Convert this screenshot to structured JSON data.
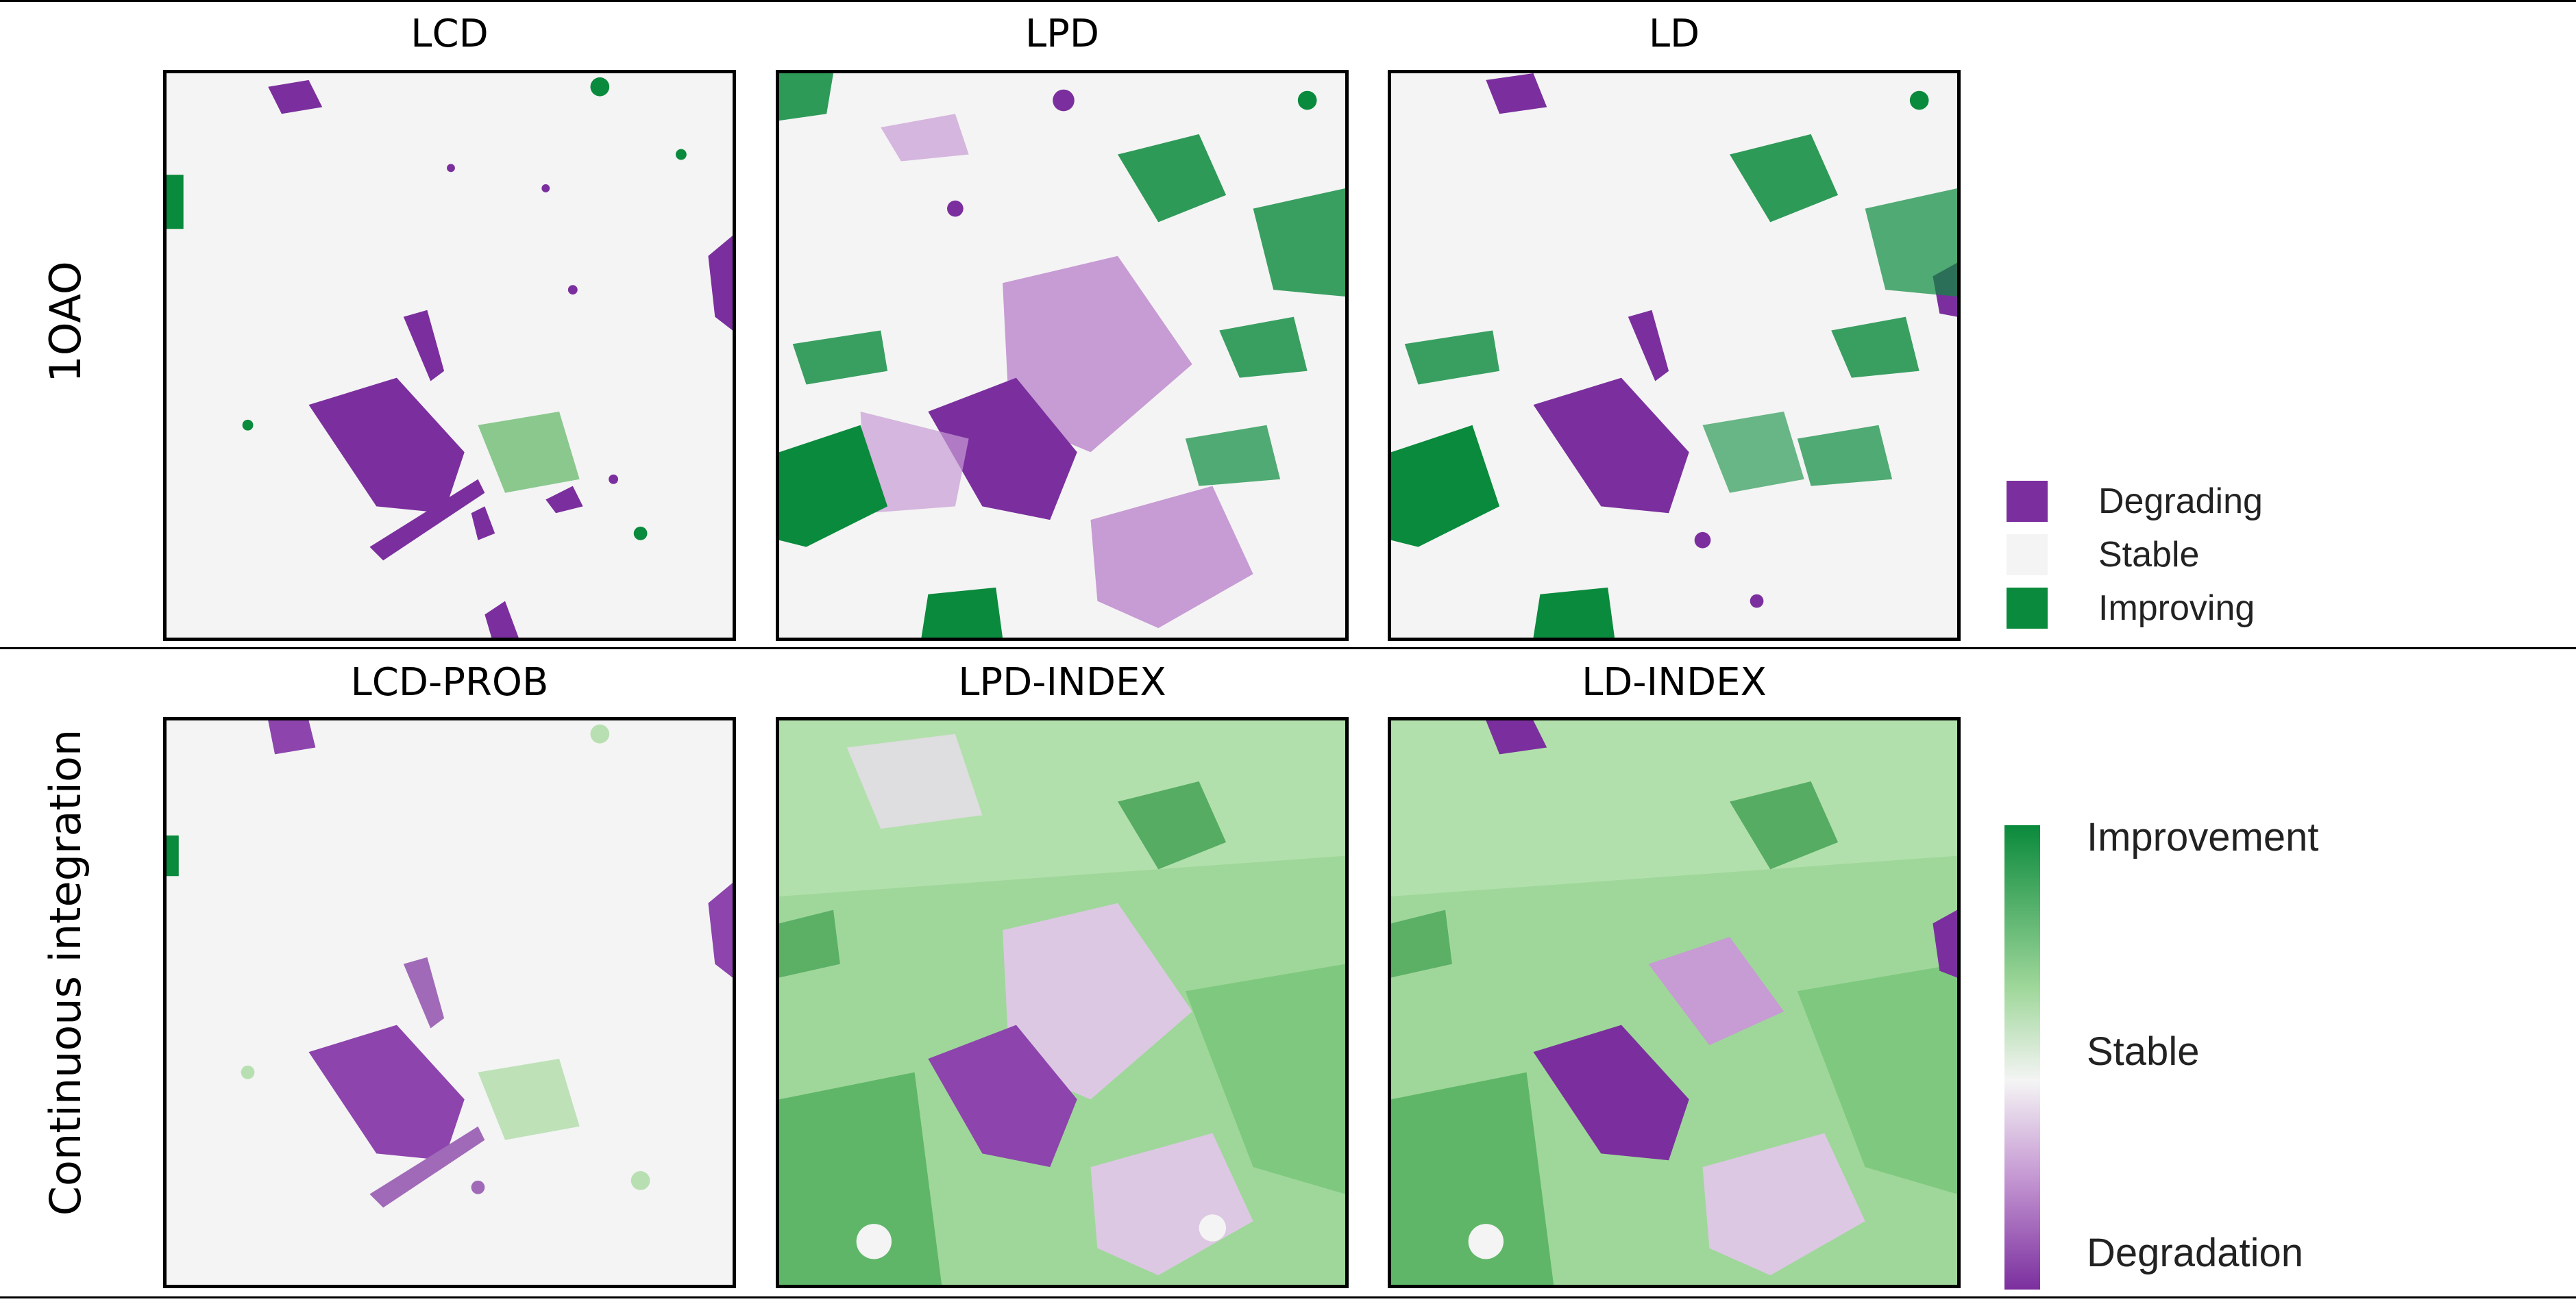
{
  "colors": {
    "degrading": "#7b2f9e",
    "stable": "#f4f4f4",
    "improving": "#0a8a3c",
    "degrading_light": "#c79bd4",
    "improving_light": "#9fd79a"
  },
  "rows": [
    {
      "label": "1OAO",
      "columns": [
        "LCD",
        "LPD",
        "LD"
      ]
    },
    {
      "label": "Continuous integration",
      "columns": [
        "LCD-PROB",
        "LPD-INDEX",
        "LD-INDEX"
      ]
    }
  ],
  "legend_discrete": [
    {
      "label": "Degrading",
      "color": "#7b2f9e"
    },
    {
      "label": "Stable",
      "color": "#f4f4f4"
    },
    {
      "label": "Improving",
      "color": "#0a8a3c"
    }
  ],
  "legend_continuous": {
    "top": "Improvement",
    "middle": "Stable",
    "bottom": "Degradation"
  },
  "map_images": [
    "land-degradation-map",
    "land-degradation-map",
    "land-degradation-map",
    "land-degradation-probability-map",
    "land-degradation-index-map",
    "land-degradation-index-map"
  ]
}
